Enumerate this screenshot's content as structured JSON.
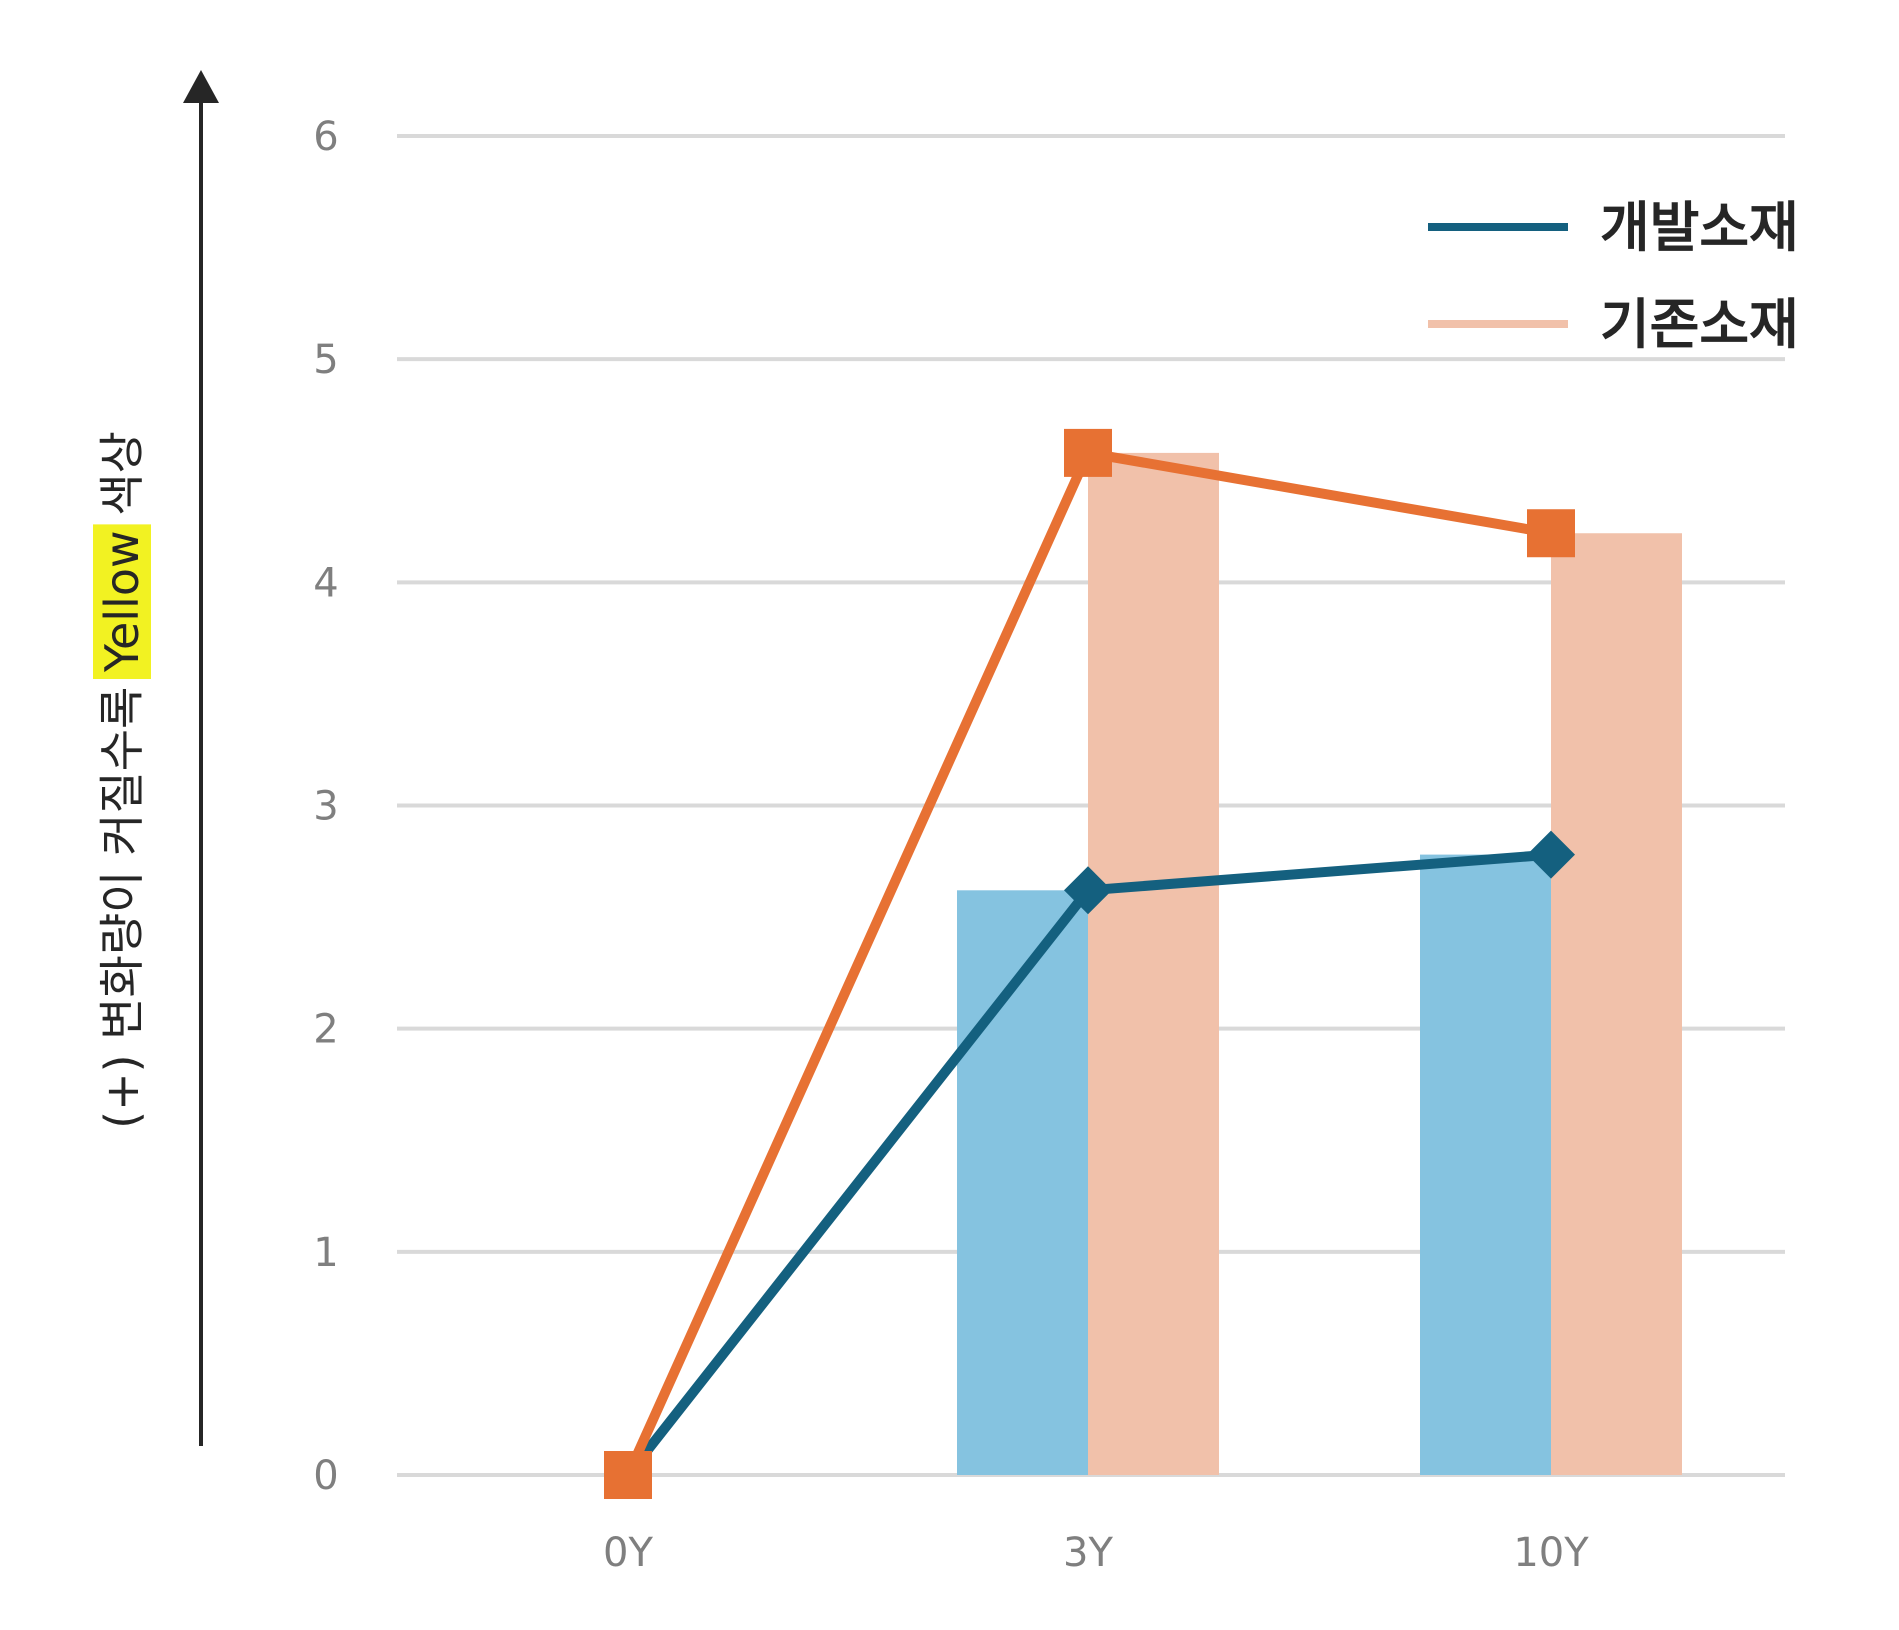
{
  "chart_data": {
    "type": "bar",
    "categories": [
      "0Y",
      "3Y",
      "10Y"
    ],
    "ylim": [
      0,
      6
    ],
    "yticks": [
      0,
      1,
      2,
      3,
      4,
      5,
      6
    ],
    "grid": true,
    "legend_position": "top-right",
    "ylabel": {
      "before": "(+) 변화량이 커질수록 ",
      "highlight": "Yellow",
      "after": " 색상"
    },
    "series": [
      {
        "name": "개발소재",
        "values": [
          0,
          2.62,
          2.78
        ],
        "bar_color": "#85c3e0",
        "line_color": "#14607f",
        "marker": "diamond"
      },
      {
        "name": "기존소재",
        "values": [
          0,
          4.58,
          4.22
        ],
        "bar_color": "#f1c1aa",
        "line_color": "#e77133",
        "marker": "square"
      }
    ],
    "colors": {
      "grid": "#d9d9d9",
      "tick_text": "#7f7f7f",
      "highlight": "#f2f222",
      "axis_arrow": "#262626"
    }
  }
}
